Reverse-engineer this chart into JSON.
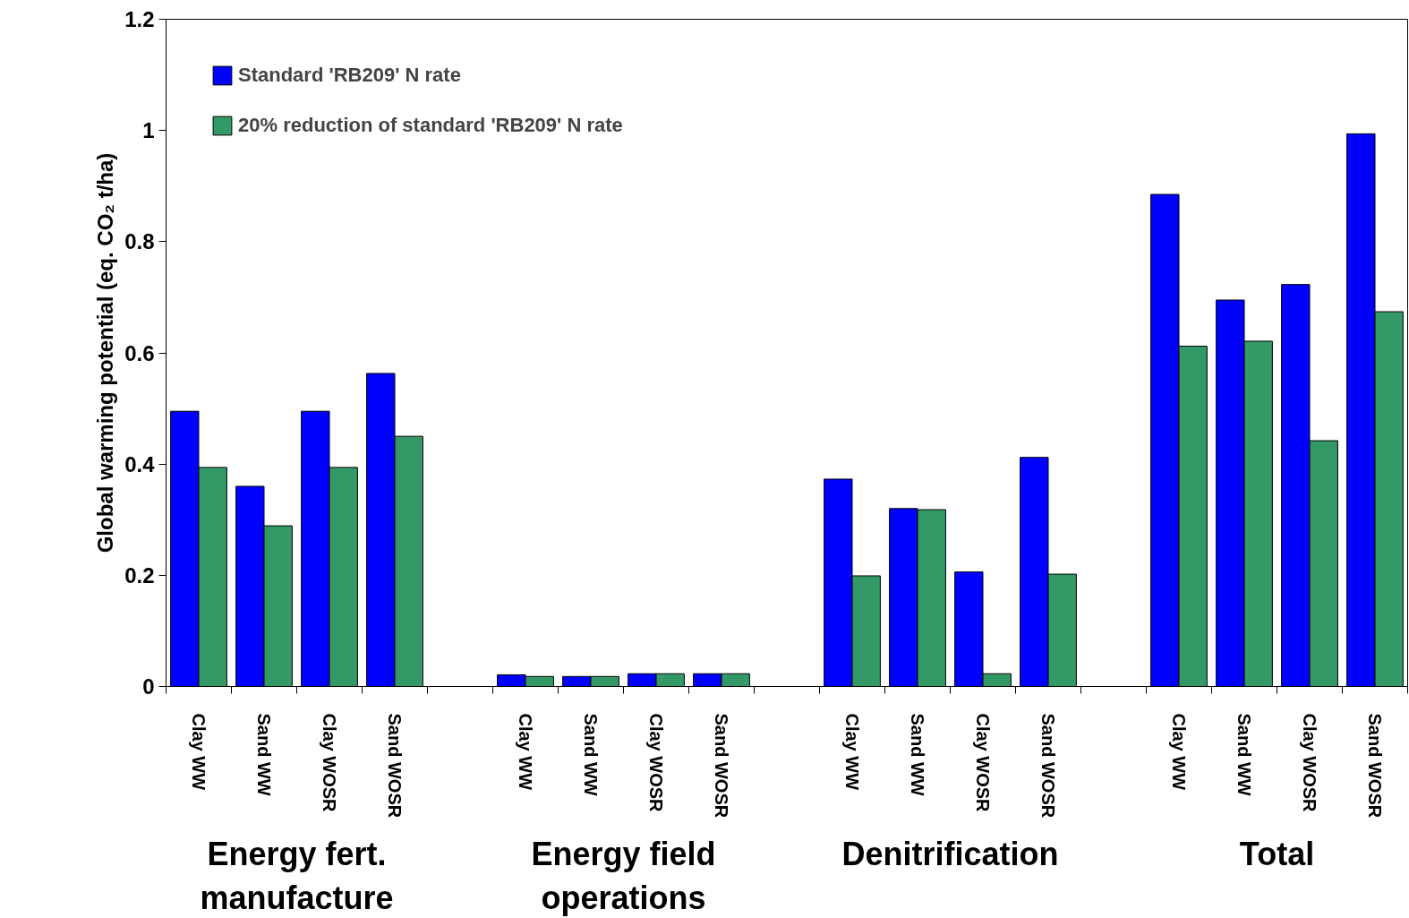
{
  "chart_data": {
    "type": "bar",
    "ylabel": "Global warming potential (eq. CO₂ t/ha)",
    "categories": [
      "Clay WW",
      "Sand WW",
      "Clay WOSR",
      "Sand WOSR",
      null,
      "Clay WW",
      "Sand WW",
      "Clay WOSR",
      "Sand WOSR",
      null,
      "Clay WW",
      "Sand WW",
      "Clay WOSR",
      "Sand WOSR",
      null,
      "Clay WW",
      "Sand WW",
      "Clay WOSR",
      "Sand WOSR"
    ],
    "series": [
      {
        "name": "Standard 'RB209' N rate",
        "color": "#0000ff",
        "values": [
          0.495,
          0.36,
          0.495,
          0.563,
          null,
          0.021,
          0.018,
          0.023,
          0.023,
          null,
          0.373,
          0.32,
          0.206,
          0.412,
          null,
          0.885,
          0.695,
          0.723,
          0.994
        ]
      },
      {
        "name": "20% reduction of standard 'RB209' N rate",
        "color": "#339966",
        "values": [
          0.394,
          0.289,
          0.394,
          0.45,
          null,
          0.018,
          0.018,
          0.023,
          0.023,
          null,
          0.199,
          0.318,
          0.023,
          0.202,
          null,
          0.612,
          0.621,
          0.442,
          0.674
        ]
      }
    ],
    "annotations": [
      "Energy fert.\nmanufacture",
      "Energy field\noperations",
      "Denitrification",
      "Total"
    ],
    "ylim": [
      0,
      1.2
    ],
    "yticks": [
      0,
      0.2,
      0.4,
      0.6,
      0.8,
      1,
      1.2
    ],
    "grid": false,
    "legend": "top left"
  }
}
